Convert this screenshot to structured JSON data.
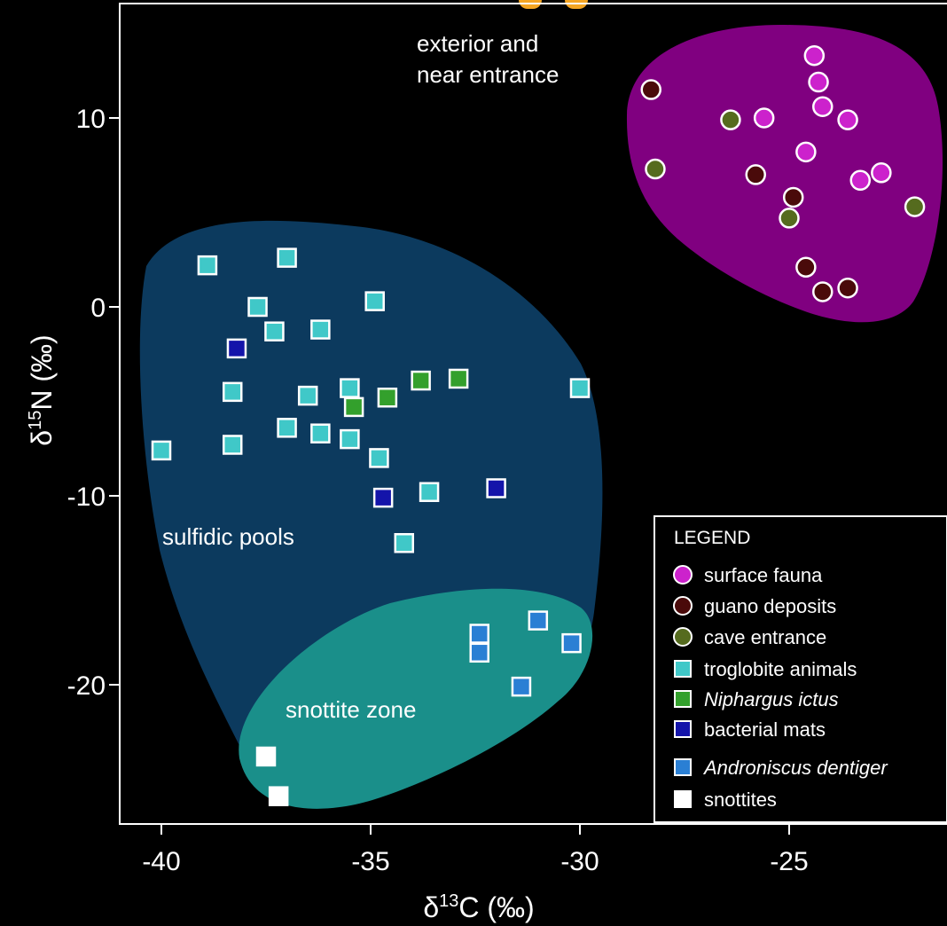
{
  "chart_data": {
    "type": "scatter",
    "xlabel": {
      "base": "δ",
      "sup": "13",
      "rest": "C (‰)"
    },
    "ylabel": {
      "base": "δ",
      "sup": "15",
      "rest": "N (‰)"
    },
    "xlim": [
      -40.5,
      -21.5
    ],
    "ylim": [
      -27,
      16
    ],
    "x_ticks": [
      -40,
      -35,
      -30,
      -25
    ],
    "y_ticks": [
      10,
      0,
      -10,
      -20
    ],
    "x_tick_labels": [
      "-40",
      "-35",
      "-30",
      "-25"
    ],
    "y_tick_labels": [
      "10",
      "0",
      "-10",
      "-20"
    ],
    "grid": false,
    "legend_position": "bottom-right",
    "legend_title": "LEGEND",
    "regions": [
      {
        "name": "exterior and near entrance",
        "label_lines": [
          "exterior and",
          "near entrance"
        ],
        "color": "#800080"
      },
      {
        "name": "sulfidic pools",
        "label_lines": [
          "sulfidic pools"
        ],
        "color": "#0c3a5e"
      },
      {
        "name": "snottite zone",
        "label_lines": [
          "snottite zone"
        ],
        "color": "#1a8f8a"
      }
    ],
    "series": [
      {
        "name": "surface fauna",
        "marker": "circle",
        "color": "#cc22cc",
        "italic": false,
        "points": [
          [
            -24.4,
            13.3
          ],
          [
            -24.3,
            11.9
          ],
          [
            -24.2,
            10.6
          ],
          [
            -23.6,
            9.9
          ],
          [
            -25.6,
            10.0
          ],
          [
            -24.6,
            8.2
          ],
          [
            -23.3,
            6.7
          ],
          [
            -22.8,
            7.1
          ]
        ]
      },
      {
        "name": "guano deposits",
        "marker": "circle",
        "color": "#4a0a0a",
        "italic": false,
        "points": [
          [
            -28.3,
            11.5
          ],
          [
            -25.8,
            7.0
          ],
          [
            -24.9,
            5.8
          ],
          [
            -24.6,
            2.1
          ],
          [
            -24.2,
            0.8
          ],
          [
            -23.6,
            1.0
          ]
        ]
      },
      {
        "name": "cave entrance",
        "marker": "circle",
        "color": "#556b1e",
        "italic": false,
        "points": [
          [
            -26.4,
            9.9
          ],
          [
            -28.2,
            7.3
          ],
          [
            -25.0,
            4.7
          ],
          [
            -22.0,
            5.3
          ]
        ]
      },
      {
        "name": "troglobite animals",
        "marker": "square",
        "color": "#40c8c8",
        "italic": false,
        "points": [
          [
            -38.9,
            2.2
          ],
          [
            -37.0,
            2.6
          ],
          [
            -37.7,
            0.0
          ],
          [
            -34.9,
            0.3
          ],
          [
            -37.3,
            -1.3
          ],
          [
            -36.2,
            -1.2
          ],
          [
            -38.3,
            -4.5
          ],
          [
            -36.5,
            -4.7
          ],
          [
            -35.5,
            -4.3
          ],
          [
            -30.0,
            -4.3
          ],
          [
            -37.0,
            -6.4
          ],
          [
            -36.2,
            -6.7
          ],
          [
            -35.5,
            -7.0
          ],
          [
            -34.8,
            -8.0
          ],
          [
            -38.3,
            -7.3
          ],
          [
            -40.0,
            -7.6
          ],
          [
            -33.6,
            -9.8
          ],
          [
            -34.2,
            -12.5
          ]
        ]
      },
      {
        "name": "Niphargus ictus",
        "marker": "square",
        "color": "#33a02c",
        "italic": true,
        "points": [
          [
            -33.8,
            -3.9
          ],
          [
            -32.9,
            -3.8
          ],
          [
            -34.6,
            -4.8
          ],
          [
            -35.4,
            -5.3
          ]
        ]
      },
      {
        "name": "bacterial mats",
        "marker": "square",
        "color": "#1414aa",
        "italic": false,
        "points": [
          [
            -38.2,
            -2.2
          ],
          [
            -32.0,
            -9.6
          ],
          [
            -34.7,
            -10.1
          ]
        ]
      },
      {
        "name": "Androniscus dentiger",
        "marker": "square",
        "color": "#2a7fd4",
        "italic": true,
        "points": [
          [
            -32.4,
            -17.3
          ],
          [
            -32.4,
            -18.3
          ],
          [
            -31.0,
            -16.6
          ],
          [
            -30.2,
            -17.8
          ],
          [
            -31.4,
            -20.1
          ]
        ]
      },
      {
        "name": "snottites",
        "marker": "square",
        "color": "#ffffff",
        "italic": false,
        "points": [
          [
            -37.5,
            -23.8
          ],
          [
            -37.2,
            -25.9
          ]
        ]
      }
    ]
  }
}
